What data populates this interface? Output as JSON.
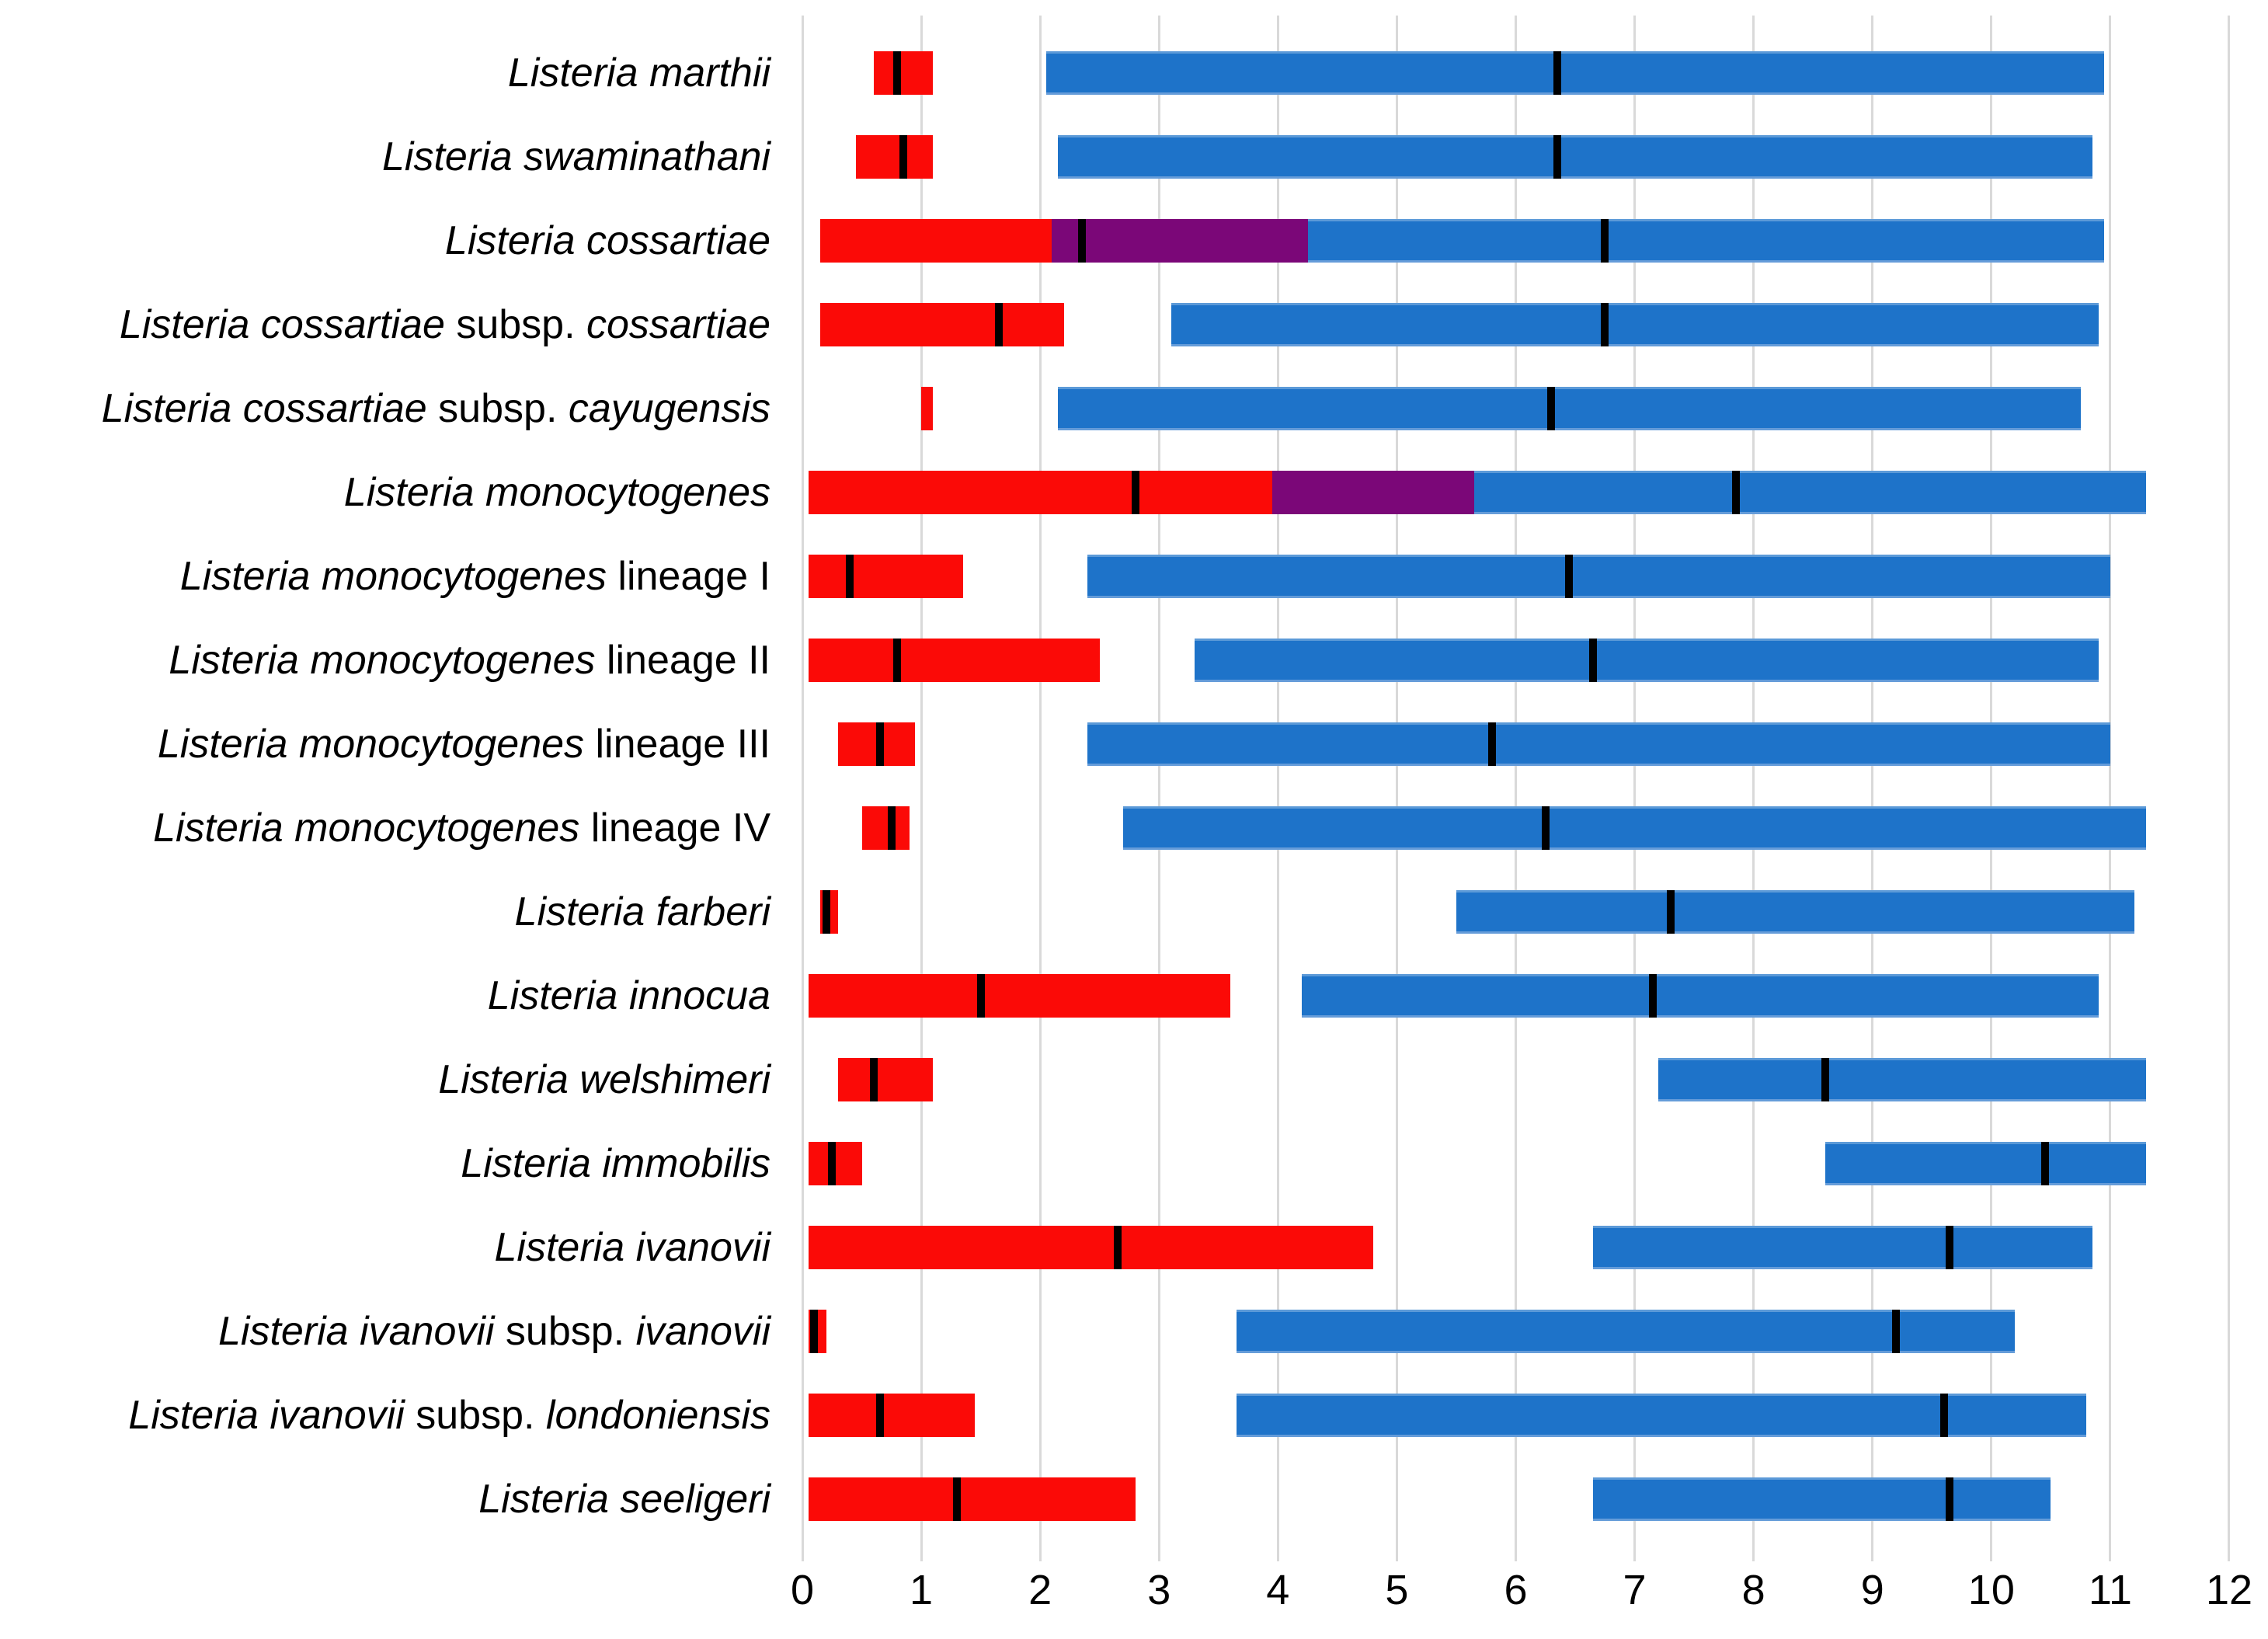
{
  "figure": {
    "background": "#ffffff"
  },
  "colors": {
    "red": "#fb0a07",
    "blue": "#1e73c9",
    "overlap": "#7b0778",
    "median": "#000000",
    "gridline": "#d9d9d9"
  },
  "chart_data": {
    "type": "bar",
    "subtype": "horizontal_dual_range_bars_with_median_ticks",
    "orientation": "horizontal",
    "xlim": [
      0,
      12
    ],
    "x_tick_labels": [
      "0",
      "1",
      "2",
      "3",
      "4",
      "5",
      "6",
      "7",
      "8",
      "9",
      "10",
      "11",
      "12"
    ],
    "grid": true,
    "legend": null,
    "series_colors": {
      "red_range": "#fb0a07",
      "blue_range": "#1e73c9",
      "red_blue_overlap": "#7b0778",
      "median_tick": "#000000"
    },
    "rows": [
      {
        "label": "Listeria marthii",
        "label_parts": [
          {
            "text": "Listeria marthii",
            "italic": true
          }
        ],
        "red_range": [
          0.6,
          1.1
        ],
        "red_median": 0.8,
        "overlap_range": null,
        "blue_range": [
          2.05,
          10.95
        ],
        "blue_median": 6.35
      },
      {
        "label": "Listeria swaminathani",
        "label_parts": [
          {
            "text": "Listeria swaminathani",
            "italic": true
          }
        ],
        "red_range": [
          0.45,
          1.1
        ],
        "red_median": 0.85,
        "overlap_range": null,
        "blue_range": [
          2.15,
          10.85
        ],
        "blue_median": 6.35
      },
      {
        "label": "Listeria cossartiae",
        "label_parts": [
          {
            "text": "Listeria cossartiae",
            "italic": true
          }
        ],
        "red_range": [
          0.15,
          4.25
        ],
        "red_median": 2.35,
        "overlap_range": [
          2.1,
          4.25
        ],
        "blue_range": [
          2.1,
          10.95
        ],
        "blue_median": 6.75
      },
      {
        "label": "Listeria cossartiae subsp. cossartiae",
        "label_parts": [
          {
            "text": "Listeria cossartiae",
            "italic": true
          },
          {
            "text": " subsp. ",
            "italic": false
          },
          {
            "text": "cossartiae",
            "italic": true
          }
        ],
        "red_range": [
          0.15,
          2.2
        ],
        "red_median": 1.65,
        "overlap_range": null,
        "blue_range": [
          3.1,
          10.9
        ],
        "blue_median": 6.75
      },
      {
        "label": "Listeria cossartiae subsp. cayugensis",
        "label_parts": [
          {
            "text": "Listeria cossartiae",
            "italic": true
          },
          {
            "text": " subsp. ",
            "italic": false
          },
          {
            "text": "cayugensis",
            "italic": true
          }
        ],
        "red_range": [
          1.0,
          1.1
        ],
        "red_median": null,
        "overlap_range": null,
        "blue_range": [
          2.15,
          10.75
        ],
        "blue_median": 6.3
      },
      {
        "label": "Listeria monocytogenes",
        "label_parts": [
          {
            "text": "Listeria monocytogenes",
            "italic": true
          }
        ],
        "red_range": [
          0.05,
          5.65
        ],
        "red_median": 2.8,
        "overlap_range": [
          3.95,
          5.65
        ],
        "blue_range": [
          3.95,
          11.3
        ],
        "blue_median": 7.85
      },
      {
        "label": "Listeria monocytogenes lineage I",
        "label_parts": [
          {
            "text": "Listeria monocytogenes",
            "italic": true
          },
          {
            "text": " lineage I",
            "italic": false
          }
        ],
        "red_range": [
          0.05,
          1.35
        ],
        "red_median": 0.4,
        "overlap_range": null,
        "blue_range": [
          2.4,
          11.0
        ],
        "blue_median": 6.45
      },
      {
        "label": "Listeria monocytogenes lineage II",
        "label_parts": [
          {
            "text": "Listeria monocytogenes",
            "italic": true
          },
          {
            "text": " lineage II",
            "italic": false
          }
        ],
        "red_range": [
          0.05,
          2.5
        ],
        "red_median": 0.8,
        "overlap_range": null,
        "blue_range": [
          3.3,
          10.9
        ],
        "blue_median": 6.65
      },
      {
        "label": "Listeria monocytogenes lineage III",
        "label_parts": [
          {
            "text": "Listeria monocytogenes",
            "italic": true
          },
          {
            "text": " lineage III",
            "italic": false
          }
        ],
        "red_range": [
          0.3,
          0.95
        ],
        "red_median": 0.65,
        "overlap_range": null,
        "blue_range": [
          2.4,
          11.0
        ],
        "blue_median": 5.8
      },
      {
        "label": "Listeria monocytogenes lineage IV",
        "label_parts": [
          {
            "text": "Listeria monocytogenes",
            "italic": true
          },
          {
            "text": " lineage IV",
            "italic": false
          }
        ],
        "red_range": [
          0.5,
          0.9
        ],
        "red_median": 0.75,
        "overlap_range": null,
        "blue_range": [
          2.7,
          11.3
        ],
        "blue_median": 6.25
      },
      {
        "label": "Listeria farberi",
        "label_parts": [
          {
            "text": "Listeria farberi",
            "italic": true
          }
        ],
        "red_range": [
          0.15,
          0.3
        ],
        "red_median": 0.2,
        "overlap_range": null,
        "blue_range": [
          5.5,
          11.2
        ],
        "blue_median": 7.3
      },
      {
        "label": "Listeria innocua",
        "label_parts": [
          {
            "text": "Listeria innocua",
            "italic": true
          }
        ],
        "red_range": [
          0.05,
          3.6
        ],
        "red_median": 1.5,
        "overlap_range": null,
        "blue_range": [
          4.2,
          10.9
        ],
        "blue_median": 7.15
      },
      {
        "label": "Listeria welshimeri",
        "label_parts": [
          {
            "text": "Listeria welshimeri",
            "italic": true
          }
        ],
        "red_range": [
          0.3,
          1.1
        ],
        "red_median": 0.6,
        "overlap_range": null,
        "blue_range": [
          7.2,
          11.3
        ],
        "blue_median": 8.6
      },
      {
        "label": "Listeria immobilis",
        "label_parts": [
          {
            "text": "Listeria immobilis",
            "italic": true
          }
        ],
        "red_range": [
          0.05,
          0.5
        ],
        "red_median": 0.25,
        "overlap_range": null,
        "blue_range": [
          8.6,
          11.3
        ],
        "blue_median": 10.45
      },
      {
        "label": "Listeria ivanovii",
        "label_parts": [
          {
            "text": "Listeria ivanovii",
            "italic": true
          }
        ],
        "red_range": [
          0.05,
          4.8
        ],
        "red_median": 2.65,
        "overlap_range": null,
        "blue_range": [
          6.65,
          10.85
        ],
        "blue_median": 9.65
      },
      {
        "label": "Listeria ivanovii subsp. ivanovii",
        "label_parts": [
          {
            "text": "Listeria ivanovii",
            "italic": true
          },
          {
            "text": " subsp. ",
            "italic": false
          },
          {
            "text": "ivanovii",
            "italic": true
          }
        ],
        "red_range": [
          0.05,
          0.2
        ],
        "red_median": 0.1,
        "overlap_range": null,
        "blue_range": [
          3.65,
          10.2
        ],
        "blue_median": 9.2
      },
      {
        "label": "Listeria ivanovii subsp. londoniensis",
        "label_parts": [
          {
            "text": "Listeria ivanovii",
            "italic": true
          },
          {
            "text": " subsp. ",
            "italic": false
          },
          {
            "text": "londoniensis",
            "italic": true
          }
        ],
        "red_range": [
          0.05,
          1.45
        ],
        "red_median": 0.65,
        "overlap_range": null,
        "blue_range": [
          3.65,
          10.8
        ],
        "blue_median": 9.6
      },
      {
        "label": "Listeria seeligeri",
        "label_parts": [
          {
            "text": "Listeria seeligeri",
            "italic": true
          }
        ],
        "red_range": [
          0.05,
          2.8
        ],
        "red_median": 1.3,
        "overlap_range": null,
        "blue_range": [
          6.65,
          10.5
        ],
        "blue_median": 9.65
      }
    ]
  }
}
